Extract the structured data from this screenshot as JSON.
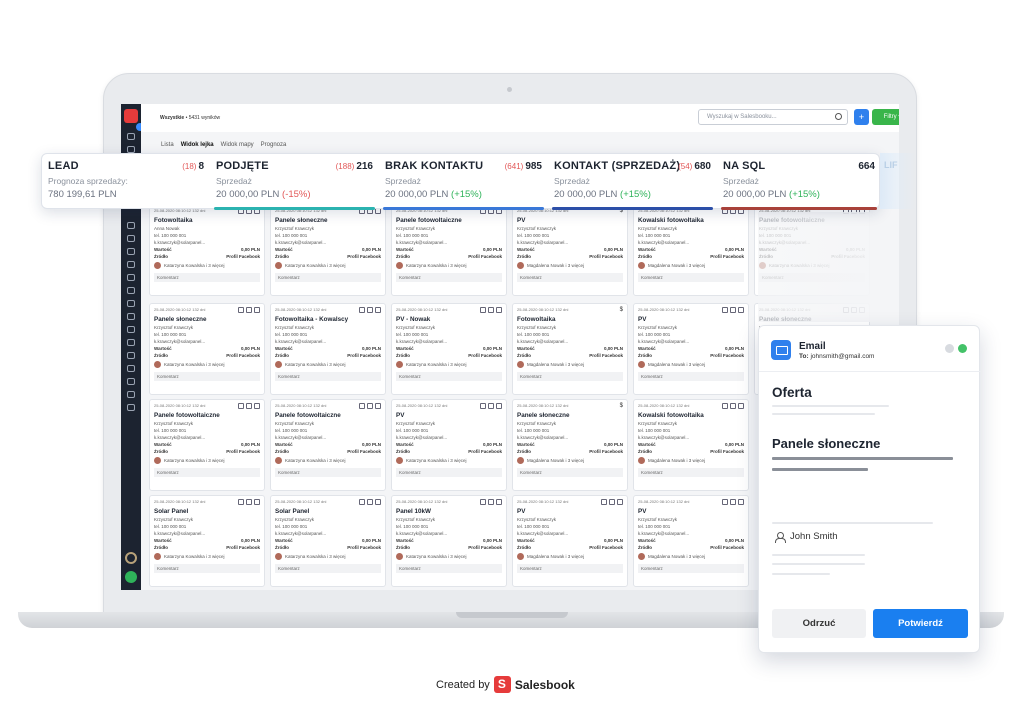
{
  "app": {
    "breadcrumb_root": "Wszystkie",
    "breadcrumb_count": "5431 wyników",
    "search_placeholder": "Wyszukaj w Salesbooku...",
    "plus_label": "+",
    "filters_label": "Filtry",
    "view_tabs": [
      "Lista",
      "Widok lejka",
      "Widok mapy",
      "Prognoza"
    ]
  },
  "stages": [
    {
      "name": "LEAD",
      "count_red": "(18)",
      "count": "8",
      "sub": "Prognoza sprzedaży:",
      "value": "780 199,61 PLN",
      "delta": ""
    },
    {
      "name": "PODJĘTE",
      "count_red": "(188)",
      "count": "216",
      "sub": "Sprzedaż",
      "value": "20 000,00 PLN",
      "delta": "(-15%)"
    },
    {
      "name": "BRAK KONTAKTU",
      "count_red": "(641)",
      "count": "985",
      "sub": "Sprzedaż",
      "value": "20 000,00 PLN",
      "delta": "(+15%)"
    },
    {
      "name": "KONTAKT (SPRZEDAŻ)",
      "count_red": "(54)",
      "count": "680",
      "sub": "Sprzedaż",
      "value": "20 000,00 PLN",
      "delta": "(+15%)"
    },
    {
      "name": "NA SQL",
      "count_red": "",
      "count": "664",
      "sub": "Sprzedaż",
      "value": "20 000,00 PLN",
      "delta": "(+15%)"
    }
  ],
  "stage_colors": [
    "#2bb3b0",
    "#2bb3b0",
    "#3a78d8",
    "#2c4fa8",
    "#a8413a"
  ],
  "stage_fade_label": "LIF",
  "cards": {
    "date": "25-08-2020 08:10:12 132 dni",
    "contact": "Krzysztof Krawczyk",
    "contact_alt": "Anna Nowak",
    "phone": "tel. 100 000 001",
    "email": "k.krawczyk@solarpanel...",
    "value_label": "Wartość",
    "value": "0,00 PLN",
    "source_label": "Źródło",
    "source": "Profil Facebook",
    "owner": "Katarzyna Kowalska i 3 więcej",
    "owner_alt": "Magdalena Nowak i 3 więcej",
    "comment": "Komentarz",
    "dollar": "$",
    "columns": [
      [
        "Fotowoltaika",
        "Panele słoneczne",
        "Panele fotowoltaiczne",
        "Solar Panel"
      ],
      [
        "Panele słoneczne",
        "Fotowoltaika - Kowalscy",
        "Panele fotowoltaiczne",
        "Solar Panel"
      ],
      [
        "Panele fotowoltaiczne",
        "PV - Nowak",
        "PV",
        "Panel 10kW"
      ],
      [
        "PV",
        "Fotowoltaika",
        "Panele słoneczne",
        "PV"
      ],
      [
        "Kowalski fotowoltaika",
        "PV",
        "Kowalski fotowoltaika",
        "PV"
      ],
      [
        "Panele fotowoltaiczne",
        "Panele słoneczne"
      ]
    ]
  },
  "email": {
    "title": "Email",
    "to_label": "To:",
    "to": "johnsmith@gmail.com",
    "offer": "Oferta",
    "subject": "Panele słoneczne",
    "person": "John Smith",
    "reject_label": "Odrzuć",
    "confirm_label": "Potwierdź"
  },
  "credit": {
    "prefix": "Created by",
    "brand": "Salesbook"
  }
}
